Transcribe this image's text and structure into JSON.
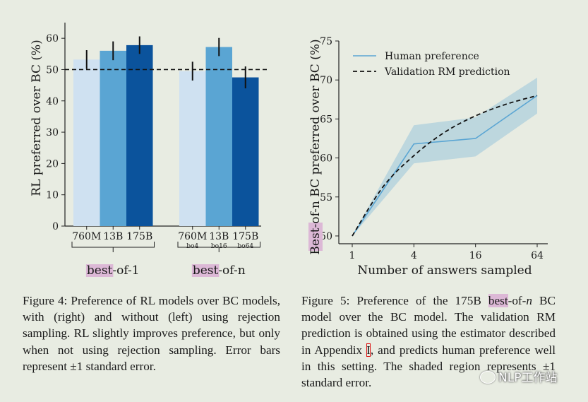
{
  "figure4": {
    "chart_data": {
      "type": "bar",
      "ylabel": "RL preferred over BC (%)",
      "ylim": [
        0,
        65
      ],
      "yticks": [
        0,
        10,
        20,
        30,
        40,
        50,
        60
      ],
      "reference_line": 50,
      "groups": [
        {
          "label": "best-of-1",
          "label_highlight": "best",
          "label_rest": "-of-1",
          "bars": [
            {
              "label": "760M",
              "sublabel": "",
              "value": 53.2,
              "err": 3.0,
              "color": "#cfe1f1"
            },
            {
              "label": "13B",
              "sublabel": "",
              "value": 56.0,
              "err": 3.0,
              "color": "#5aa5d3"
            },
            {
              "label": "175B",
              "sublabel": "",
              "value": 57.8,
              "err": 2.8,
              "color": "#0b539c"
            }
          ]
        },
        {
          "label": "best-of-n",
          "label_highlight": "best",
          "label_rest": "-of-n",
          "bars": [
            {
              "label": "760M",
              "sublabel": "bo4",
              "value": 49.5,
              "err": 3.0,
              "color": "#cfe1f1"
            },
            {
              "label": "13B",
              "sublabel": "bo16",
              "value": 57.2,
              "err": 2.9,
              "color": "#5aa5d3"
            },
            {
              "label": "175B",
              "sublabel": "bo64",
              "value": 47.5,
              "err": 3.5,
              "color": "#0b539c"
            }
          ]
        }
      ]
    },
    "caption": "Figure 4: Preference of RL models over BC models, with (right) and without (left) using rejection sampling. RL slightly improves preference, but only when not using rejection sampling. Error bars represent ±1 standard error."
  },
  "figure5": {
    "chart_data": {
      "type": "line",
      "xlabel": "Number of answers sampled",
      "ylabel_highlight": "Best",
      "ylabel_rest": "-of-n BC preferred over BC (%)",
      "ylim": [
        49,
        75
      ],
      "yticks": [
        50,
        55,
        60,
        65,
        70,
        75
      ],
      "x_scale": "log4",
      "xticks": [
        1,
        4,
        16,
        64
      ],
      "grid": false,
      "legend_position": "top-left",
      "series": [
        {
          "name": "Human preference",
          "style": "solid",
          "color": "#5aa5d3",
          "x": [
            1,
            4,
            16,
            64
          ],
          "y": [
            50.0,
            61.8,
            62.5,
            68.0
          ],
          "lower": [
            50.0,
            59.3,
            60.2,
            65.7
          ],
          "upper": [
            50.0,
            64.2,
            65.2,
            70.3
          ]
        },
        {
          "name": "Validation RM prediction",
          "style": "dashed",
          "color": "#111111",
          "x": [
            1,
            2,
            4,
            8,
            16,
            32,
            64
          ],
          "y": [
            50.0,
            56.3,
            60.3,
            63.3,
            65.4,
            66.9,
            68.0
          ]
        }
      ]
    },
    "caption": {
      "pre": "Figure 5: Preference of the 175B ",
      "highlight": "best",
      "mid": "-of-",
      "n": "n",
      "post": " BC model over the BC model. The validation RM prediction is obtained using the estimator described in Appendix ",
      "ref": "I",
      "end": ", and predicts human preference well in this setting. The shaded region represents ±1 standard error."
    }
  },
  "watermark": "NLP工作站"
}
